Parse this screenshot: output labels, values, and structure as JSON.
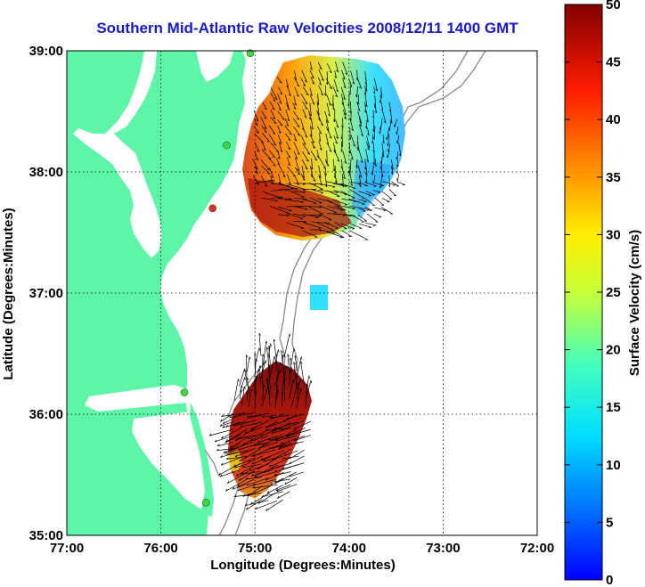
{
  "title": "Southern Mid-Atlantic Raw Velocities 2008/12/11 1400 GMT",
  "xaxis": {
    "label": "Longitude (Degrees:Minutes)",
    "ticks": [
      "77:00",
      "76:00",
      "75:00",
      "74:00",
      "73:00",
      "72:00"
    ]
  },
  "yaxis": {
    "label": "Latitude (Degrees:Minutes)",
    "ticks": [
      "39:00",
      "38:00",
      "37:00",
      "36:00",
      "35:00"
    ]
  },
  "colorbar": {
    "label": "Surface Velocity (cm/s)",
    "ticks": [
      "50",
      "45",
      "40",
      "35",
      "30",
      "25",
      "20",
      "15",
      "10",
      "5",
      "0"
    ],
    "range": [
      0,
      50
    ]
  },
  "colors": {
    "land": "#5ef5a8",
    "title": "#1a1acc",
    "station_active": "#3ed84a",
    "station_inactive": "#e0302a"
  },
  "map_data": {
    "lon_range": [
      -77,
      -72
    ],
    "lat_range": [
      35,
      39
    ],
    "grid": "dotted",
    "stations": [
      {
        "lon": -75.05,
        "lat": 38.98,
        "status": "active"
      },
      {
        "lon": -75.3,
        "lat": 38.22,
        "status": "active"
      },
      {
        "lon": -75.45,
        "lat": 37.7,
        "status": "inactive"
      },
      {
        "lon": -75.75,
        "lat": 36.18,
        "status": "active"
      },
      {
        "lon": -75.52,
        "lat": 35.27,
        "status": "active"
      }
    ]
  }
}
